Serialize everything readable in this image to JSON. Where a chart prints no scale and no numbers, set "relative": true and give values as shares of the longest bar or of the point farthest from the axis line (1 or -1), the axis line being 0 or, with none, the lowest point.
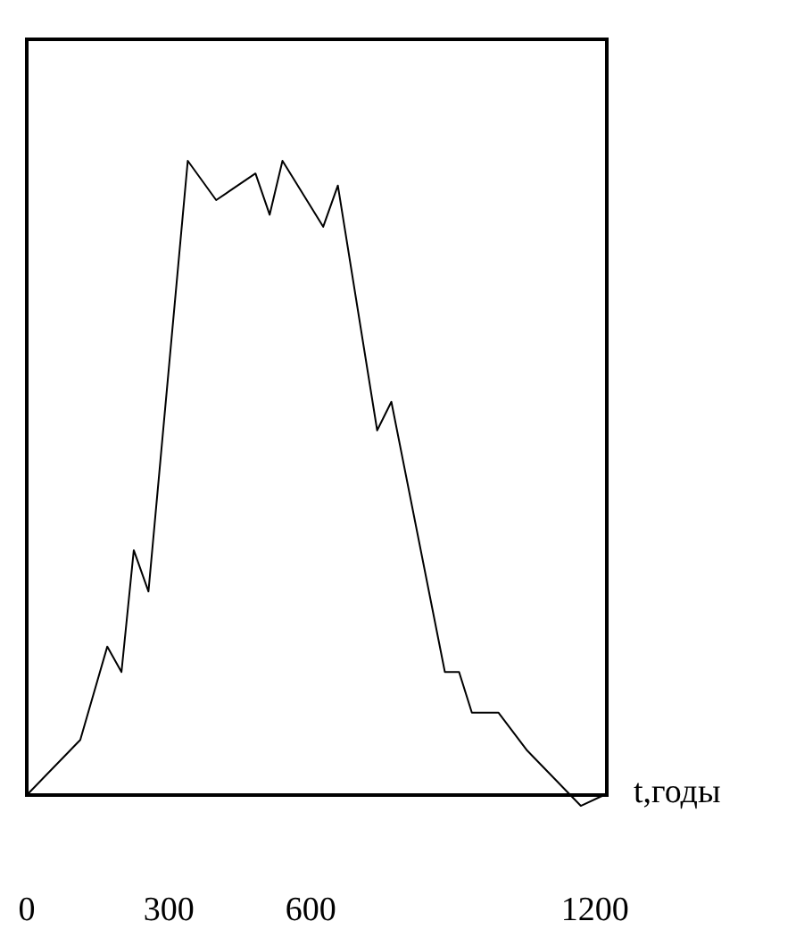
{
  "chart_data": {
    "type": "line",
    "relative": true,
    "xlabel": "t,годы",
    "tick_labels": "x",
    "grid": false,
    "marker": "none",
    "line_style": "solid",
    "xlim": [
      0,
      1225
    ],
    "xticks": [
      0,
      300,
      600,
      1200
    ],
    "x": [
      0,
      113,
      170,
      200,
      226,
      257,
      340,
      400,
      483,
      513,
      540,
      626,
      657,
      740,
      770,
      883,
      913,
      940,
      996,
      1057,
      1170,
      1219
    ],
    "series": [
      {
        "color": "#000000",
        "values": [
          0,
          0.087,
          0.234,
          0.194,
          0.386,
          0.321,
          1,
          0.938,
          0.98,
          0.915,
          1,
          0.896,
          0.961,
          0.575,
          0.62,
          0.194,
          0.194,
          0.13,
          0.13,
          0.07,
          -0.017,
          0
        ]
      }
    ]
  }
}
